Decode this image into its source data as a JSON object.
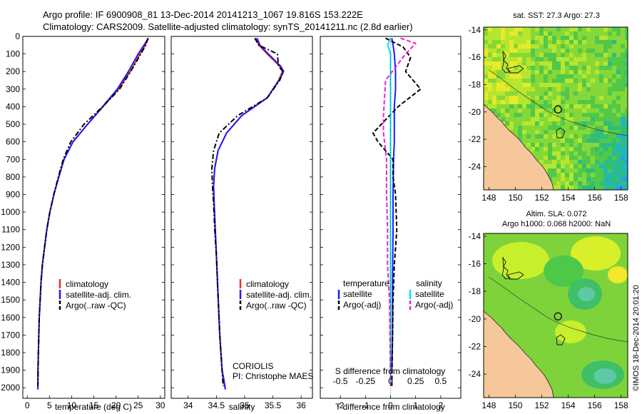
{
  "header": {
    "title_line1": "Argo profile: IF 6900908_81 13-Dec-2014 20141213_1067 19.816S 153.222E",
    "title_line2": "Climatology: CARS2009. Satellite-adjusted climatology: synTS_20141211.nc (2.8d earlier)"
  },
  "colors": {
    "climatology": "#e8322a",
    "satellite": "#1a1aff",
    "argo": "#000000",
    "sal_satellite": "#00e5ee",
    "sal_argo": "#ee22cc",
    "land": "#f6c79a"
  },
  "panels": {
    "temperature": {
      "xlabel": "temperature (deg C)",
      "legend": [
        "climatology",
        "satellite-adj. clim.",
        "Argo(..raw -QC)"
      ]
    },
    "salinity": {
      "xlabel": "salinity",
      "legend": [
        "climatology",
        "satellite-adj. clim.",
        "Argo(..raw -QC)"
      ],
      "note_line1": "CORIOLIS",
      "note_line2": "PI: Christophe MAES"
    },
    "difference": {
      "top_label": "S difference from climatology",
      "xlabel": "T difference from climatology",
      "legend_temp_title": "temperature",
      "legend_sal_title": "salinity",
      "legend_items": [
        "satellite",
        "Argo(-adj)",
        "satellite",
        "Argo(-adj)"
      ]
    },
    "maps": {
      "sst_title": "sat. SST: 27.3 Argo: 27.3",
      "sla_title1": "Altim. SLA: 0.072",
      "sla_title2": "Argo h1000: 0.068 h2000: NaN",
      "credit": "©IMOS 18-Dec-2014 20:01:20"
    }
  },
  "chart_data": [
    {
      "type": "line",
      "name": "temperature profile",
      "xlabel": "temperature (deg C)",
      "ylabel": "",
      "xlim": [
        -1,
        31
      ],
      "ylim": [
        2060,
        0
      ],
      "xticks": [
        0,
        5,
        10,
        15,
        20,
        25,
        30
      ],
      "yticks": [
        0,
        100,
        200,
        300,
        400,
        500,
        600,
        700,
        800,
        900,
        1000,
        1100,
        1200,
        1300,
        1400,
        1500,
        1600,
        1700,
        1800,
        1900,
        2000
      ],
      "series": [
        {
          "name": "climatology",
          "x": [
            27.3,
            26.6,
            25.4,
            23.2,
            20.6,
            17.1,
            13.6,
            10.3,
            8.3,
            7.1,
            6.0,
            5.1,
            4.4,
            3.9,
            3.4,
            3.1,
            2.9,
            2.7,
            2.6,
            2.5,
            2.4
          ],
          "y": [
            10,
            50,
            100,
            200,
            300,
            400,
            500,
            600,
            700,
            800,
            900,
            1000,
            1100,
            1200,
            1300,
            1400,
            1500,
            1600,
            1700,
            1800,
            2000
          ]
        },
        {
          "name": "satellite-adj. clim.",
          "x": [
            27.3,
            26.3,
            25.0,
            22.8,
            20.3,
            17.0,
            13.6,
            10.3,
            8.3,
            7.1,
            6.0,
            5.1,
            4.4,
            3.9,
            3.4,
            3.1,
            2.9,
            2.7,
            2.6,
            2.5,
            2.4,
            2.4
          ],
          "y": [
            10,
            50,
            100,
            200,
            300,
            400,
            500,
            600,
            700,
            800,
            900,
            1000,
            1100,
            1200,
            1300,
            1400,
            1500,
            1600,
            1700,
            1800,
            1900,
            2010
          ]
        },
        {
          "name": "Argo(..raw -QC)",
          "x": [
            27.2,
            26.7,
            25.6,
            23.3,
            20.8,
            17.0,
            12.8,
            9.8,
            8.1,
            7.0,
            6.0,
            5.1,
            4.4,
            3.9,
            3.4,
            3.1,
            2.9,
            2.7,
            2.6,
            2.5,
            2.4
          ],
          "y": [
            10,
            50,
            100,
            200,
            300,
            400,
            500,
            600,
            700,
            800,
            900,
            1000,
            1100,
            1200,
            1300,
            1400,
            1500,
            1600,
            1700,
            1800,
            1990
          ]
        }
      ]
    },
    {
      "type": "line",
      "name": "salinity profile",
      "xlabel": "salinity",
      "xlim": [
        33.7,
        36.2
      ],
      "ylim": [
        2060,
        0
      ],
      "xticks": [
        34,
        34.5,
        35,
        35.5,
        36
      ],
      "series": [
        {
          "name": "climatology",
          "x": [
            35.2,
            35.25,
            35.4,
            35.62,
            35.67,
            35.6,
            35.4,
            34.95,
            34.68,
            34.53,
            34.47,
            34.45,
            34.46,
            34.48,
            34.5,
            34.52,
            34.54,
            34.56,
            34.58,
            34.6,
            34.62,
            34.65
          ],
          "y": [
            10,
            50,
            100,
            170,
            200,
            250,
            350,
            450,
            550,
            650,
            750,
            850,
            950,
            1100,
            1250,
            1400,
            1550,
            1700,
            1800,
            1900,
            1950,
            2000
          ]
        },
        {
          "name": "satellite-adj. clim.",
          "x": [
            35.22,
            35.27,
            35.42,
            35.64,
            35.69,
            35.61,
            35.4,
            34.95,
            34.68,
            34.53,
            34.47,
            34.45,
            34.46,
            34.48,
            34.5,
            34.52,
            34.54,
            34.56,
            34.58,
            34.6,
            34.63,
            34.66
          ],
          "y": [
            10,
            50,
            100,
            170,
            200,
            250,
            350,
            450,
            550,
            650,
            750,
            850,
            950,
            1100,
            1250,
            1400,
            1550,
            1700,
            1800,
            1900,
            1950,
            2010
          ]
        },
        {
          "name": "Argo(..raw -QC)",
          "x": [
            35.18,
            35.25,
            35.58,
            35.6,
            35.68,
            35.62,
            35.4,
            34.88,
            34.55,
            34.45,
            34.42,
            34.43,
            34.45,
            34.47,
            34.5,
            34.52,
            34.54,
            34.56,
            34.58,
            34.6,
            34.62
          ],
          "y": [
            10,
            50,
            100,
            170,
            200,
            250,
            350,
            450,
            550,
            650,
            750,
            850,
            950,
            1100,
            1250,
            1400,
            1550,
            1700,
            1800,
            1900,
            1990
          ]
        }
      ]
    },
    {
      "type": "line",
      "name": "difference from climatology",
      "xlabel": "T difference from climatology",
      "x2label": "S difference from climatology",
      "xlim": [
        -2.8,
        2.8
      ],
      "ylim": [
        2060,
        0
      ],
      "xticks": [
        -2,
        -1,
        0,
        1,
        2
      ],
      "x2ticks": [
        -0.5,
        -0.25,
        0,
        0.25,
        0.5
      ],
      "series": [
        {
          "name": "temperature satellite",
          "x": [
            0.05,
            0.1,
            0.15,
            0.2,
            0.2,
            0.15,
            0.15,
            0.15,
            0.12,
            0.1,
            0.1,
            0.08,
            0.08,
            0.05
          ],
          "y": [
            10,
            50,
            100,
            200,
            300,
            400,
            500,
            600,
            700,
            900,
            1100,
            1400,
            1700,
            1900
          ]
        },
        {
          "name": "temperature Argo(-adj)",
          "x": [
            -0.2,
            0.5,
            0.8,
            0.6,
            1.2,
            0.3,
            -0.7,
            -0.5,
            0.1,
            0.1,
            0.2,
            0.25,
            0.15,
            0.1,
            0.05
          ],
          "y": [
            10,
            60,
            120,
            200,
            300,
            400,
            550,
            600,
            700,
            800,
            900,
            1100,
            1300,
            1500,
            1990
          ]
        },
        {
          "name": "salinity satellite",
          "x": [
            0.0,
            -0.03,
            0.0,
            0.0,
            0.0,
            0.0,
            0.0,
            0.0,
            0.0
          ],
          "y": [
            10,
            50,
            100,
            300,
            600,
            900,
            1200,
            1600,
            1990
          ]
        },
        {
          "name": "salinity Argo(-adj)",
          "x": [
            0.1,
            0.25,
            0.15,
            -0.05,
            -0.07,
            -0.07,
            -0.04,
            -0.04,
            -0.03,
            -0.03,
            -0.01,
            0.0
          ],
          "y": [
            10,
            40,
            100,
            250,
            450,
            550,
            700,
            900,
            1100,
            1300,
            1500,
            1990
          ]
        }
      ]
    },
    {
      "type": "heatmap",
      "name": "satellite SST map",
      "xlim": [
        147.6,
        158.5
      ],
      "ylim": [
        -25.7,
        -13.8
      ],
      "xticks": [
        148,
        150,
        152,
        154,
        156,
        158
      ],
      "yticks": [
        -14,
        -16,
        -18,
        -20,
        -22,
        -24
      ],
      "argo_position": [
        153.222,
        -19.816
      ]
    },
    {
      "type": "heatmap",
      "name": "altimeter SLA map",
      "xlim": [
        147.6,
        158.5
      ],
      "ylim": [
        -25.7,
        -13.8
      ],
      "xticks": [
        148,
        150,
        152,
        154,
        156,
        158
      ],
      "yticks": [
        -14,
        -16,
        -18,
        -20,
        -22,
        -24
      ],
      "argo_position": [
        153.222,
        -19.816
      ]
    }
  ]
}
